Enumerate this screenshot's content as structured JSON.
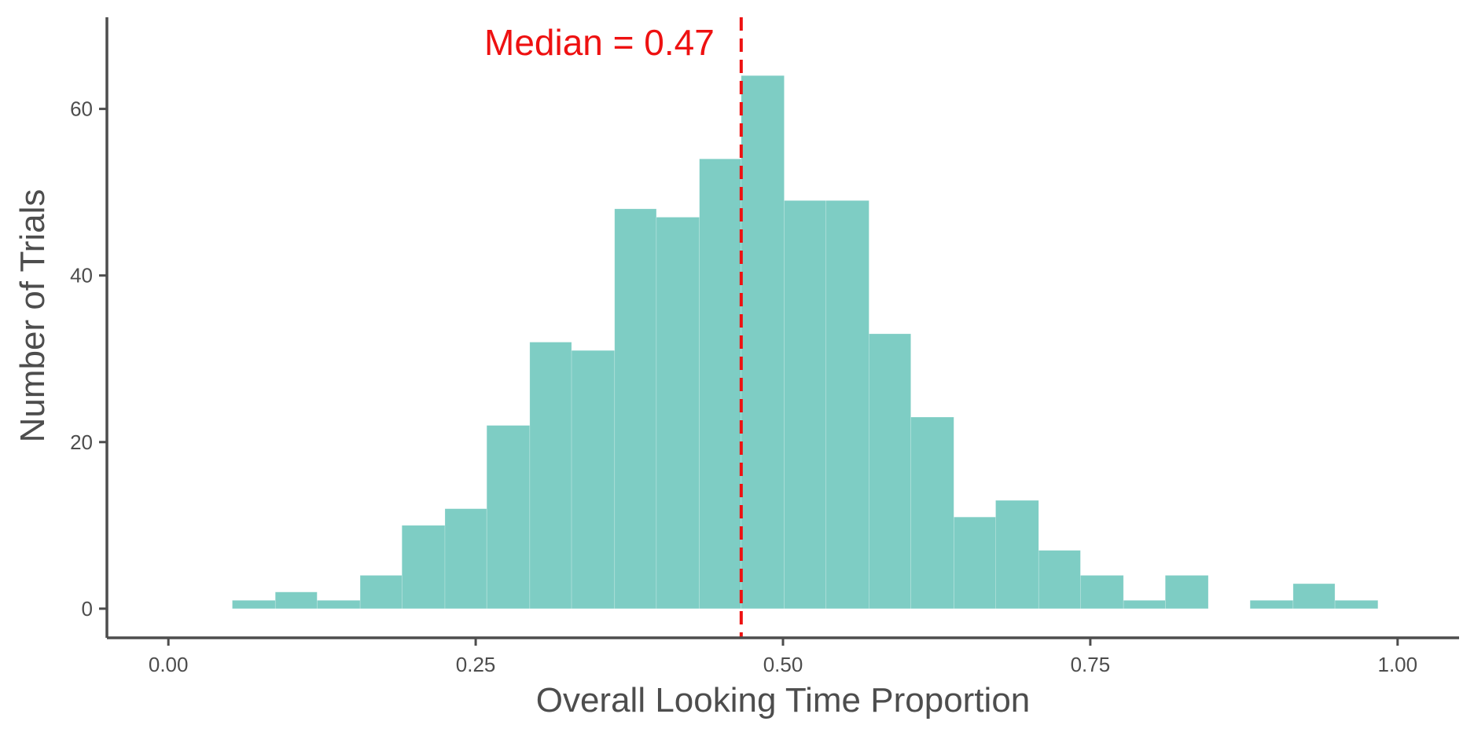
{
  "chart_data": {
    "type": "bar",
    "xlabel": "Overall Looking Time Proportion",
    "ylabel": "Number of Trials",
    "xlim": [
      -0.05,
      1.05
    ],
    "ylim": [
      -3.5,
      71
    ],
    "x_ticks": [
      0,
      0.25,
      0.5,
      0.75,
      1
    ],
    "x_tick_labels": [
      "0.00",
      "0.25",
      "0.50",
      "0.75",
      "1.00"
    ],
    "y_ticks": [
      0,
      20,
      40,
      60
    ],
    "y_tick_labels": [
      "0",
      "20",
      "40",
      "60"
    ],
    "bin_width": 0.0345,
    "bins": [
      {
        "x0": 0.052,
        "x1": 0.087,
        "count": 1
      },
      {
        "x0": 0.087,
        "x1": 0.121,
        "count": 2
      },
      {
        "x0": 0.121,
        "x1": 0.156,
        "count": 1
      },
      {
        "x0": 0.156,
        "x1": 0.19,
        "count": 4
      },
      {
        "x0": 0.19,
        "x1": 0.225,
        "count": 10
      },
      {
        "x0": 0.225,
        "x1": 0.259,
        "count": 12
      },
      {
        "x0": 0.259,
        "x1": 0.294,
        "count": 22
      },
      {
        "x0": 0.294,
        "x1": 0.328,
        "count": 32
      },
      {
        "x0": 0.328,
        "x1": 0.363,
        "count": 31
      },
      {
        "x0": 0.363,
        "x1": 0.397,
        "count": 48
      },
      {
        "x0": 0.397,
        "x1": 0.432,
        "count": 47
      },
      {
        "x0": 0.432,
        "x1": 0.466,
        "count": 54
      },
      {
        "x0": 0.466,
        "x1": 0.501,
        "count": 64
      },
      {
        "x0": 0.501,
        "x1": 0.535,
        "count": 49
      },
      {
        "x0": 0.535,
        "x1": 0.57,
        "count": 49
      },
      {
        "x0": 0.57,
        "x1": 0.604,
        "count": 33
      },
      {
        "x0": 0.604,
        "x1": 0.639,
        "count": 23
      },
      {
        "x0": 0.639,
        "x1": 0.673,
        "count": 11
      },
      {
        "x0": 0.673,
        "x1": 0.708,
        "count": 13
      },
      {
        "x0": 0.708,
        "x1": 0.742,
        "count": 7
      },
      {
        "x0": 0.742,
        "x1": 0.777,
        "count": 4
      },
      {
        "x0": 0.777,
        "x1": 0.811,
        "count": 1
      },
      {
        "x0": 0.811,
        "x1": 0.846,
        "count": 4
      },
      {
        "x0": 0.846,
        "x1": 0.88,
        "count": 0
      },
      {
        "x0": 0.88,
        "x1": 0.915,
        "count": 1
      },
      {
        "x0": 0.915,
        "x1": 0.949,
        "count": 3
      },
      {
        "x0": 0.949,
        "x1": 0.984,
        "count": 1
      }
    ],
    "bar_color": "#7ecdc4",
    "median": {
      "value": 0.466,
      "label": "Median = 0.47",
      "color": "#ee1111",
      "label_y": 68
    },
    "axis_color": "#4d4d4d",
    "grid": false,
    "legend": "none"
  }
}
